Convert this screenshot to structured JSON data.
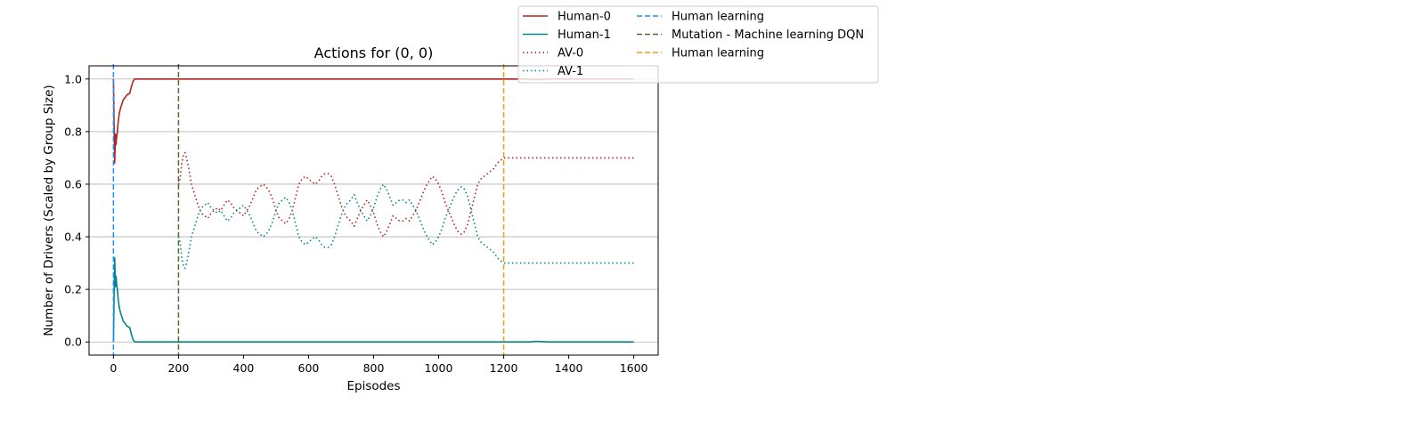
{
  "chart_data": {
    "type": "line",
    "title": "Actions for (0, 0)",
    "xlabel": "Episodes",
    "ylabel": "Number of Drivers (Scaled by Group Size)",
    "xlim": [
      -75,
      1675
    ],
    "ylim": [
      -0.05,
      1.05
    ],
    "xticks": [
      0,
      200,
      400,
      600,
      800,
      1000,
      1200,
      1400,
      1600
    ],
    "yticks": [
      0.0,
      0.2,
      0.4,
      0.6,
      0.8,
      1.0
    ],
    "grid": "horizontal",
    "legend_position": "top-right, outside plot",
    "series": [
      {
        "name": "Human-0",
        "style": "solid",
        "color": "#b22222",
        "x": [
          0,
          2,
          4,
          6,
          8,
          10,
          12,
          14,
          18,
          22,
          26,
          30,
          36,
          42,
          50,
          55,
          60,
          65,
          70,
          80,
          100,
          200,
          400,
          600,
          800,
          1000,
          1200,
          1280,
          1300,
          1340,
          1400,
          1600
        ],
        "y": [
          1.0,
          0.82,
          0.68,
          0.79,
          0.75,
          0.78,
          0.8,
          0.83,
          0.87,
          0.89,
          0.905,
          0.92,
          0.93,
          0.94,
          0.945,
          0.97,
          0.99,
          1.0,
          1.0,
          1.0,
          1.0,
          1.0,
          1.0,
          1.0,
          1.0,
          1.0,
          1.0,
          1.0,
          0.998,
          1.0,
          1.0,
          1.0
        ]
      },
      {
        "name": "Human-1",
        "style": "solid",
        "color": "#00868b",
        "x": [
          0,
          2,
          4,
          6,
          8,
          10,
          12,
          14,
          18,
          22,
          26,
          30,
          36,
          42,
          50,
          55,
          60,
          65,
          70,
          80,
          100,
          200,
          400,
          600,
          800,
          1000,
          1200,
          1280,
          1300,
          1340,
          1400,
          1600
        ],
        "y": [
          0.0,
          0.18,
          0.32,
          0.21,
          0.25,
          0.22,
          0.2,
          0.17,
          0.13,
          0.11,
          0.095,
          0.08,
          0.07,
          0.06,
          0.055,
          0.03,
          0.01,
          0.0,
          0.0,
          0.0,
          0.0,
          0.0,
          0.0,
          0.0,
          0.0,
          0.0,
          0.0,
          0.0,
          0.002,
          0.0,
          0.0,
          0.0
        ]
      },
      {
        "name": "AV-0",
        "style": "dotted",
        "color": "#b22222",
        "x": [
          200,
          205,
          210,
          215,
          220,
          225,
          230,
          240,
          250,
          260,
          270,
          280,
          290,
          300,
          310,
          320,
          330,
          340,
          350,
          360,
          370,
          380,
          390,
          400,
          410,
          420,
          430,
          440,
          450,
          460,
          470,
          480,
          490,
          500,
          510,
          520,
          530,
          540,
          550,
          560,
          570,
          580,
          590,
          600,
          610,
          620,
          630,
          640,
          650,
          660,
          670,
          680,
          690,
          700,
          710,
          720,
          730,
          740,
          750,
          760,
          770,
          780,
          790,
          800,
          810,
          820,
          830,
          840,
          850,
          860,
          870,
          880,
          890,
          900,
          910,
          920,
          930,
          940,
          950,
          960,
          970,
          980,
          990,
          1000,
          1010,
          1020,
          1030,
          1040,
          1050,
          1060,
          1070,
          1080,
          1090,
          1100,
          1110,
          1120,
          1130,
          1140,
          1150,
          1160,
          1170,
          1180,
          1190,
          1200,
          1210,
          1220,
          1230,
          1240,
          1250,
          1260,
          1270,
          1280,
          1300,
          1350,
          1400,
          1450,
          1500,
          1550,
          1600
        ],
        "y": [
          0.6,
          0.62,
          0.68,
          0.71,
          0.72,
          0.7,
          0.67,
          0.6,
          0.56,
          0.52,
          0.49,
          0.48,
          0.47,
          0.49,
          0.5,
          0.51,
          0.5,
          0.52,
          0.54,
          0.53,
          0.51,
          0.5,
          0.49,
          0.48,
          0.5,
          0.52,
          0.55,
          0.58,
          0.59,
          0.6,
          0.59,
          0.57,
          0.54,
          0.5,
          0.47,
          0.46,
          0.45,
          0.47,
          0.5,
          0.55,
          0.6,
          0.62,
          0.63,
          0.62,
          0.61,
          0.6,
          0.61,
          0.63,
          0.64,
          0.64,
          0.63,
          0.6,
          0.56,
          0.52,
          0.49,
          0.47,
          0.46,
          0.44,
          0.47,
          0.5,
          0.52,
          0.54,
          0.52,
          0.49,
          0.45,
          0.42,
          0.4,
          0.42,
          0.45,
          0.48,
          0.47,
          0.46,
          0.46,
          0.47,
          0.46,
          0.48,
          0.5,
          0.53,
          0.56,
          0.59,
          0.61,
          0.63,
          0.62,
          0.6,
          0.57,
          0.53,
          0.5,
          0.47,
          0.44,
          0.42,
          0.41,
          0.42,
          0.45,
          0.5,
          0.55,
          0.6,
          0.62,
          0.63,
          0.64,
          0.65,
          0.66,
          0.68,
          0.69,
          0.7,
          0.7,
          0.7,
          0.7,
          0.7,
          0.7,
          0.7,
          0.7,
          0.7,
          0.7,
          0.7,
          0.7,
          0.7,
          0.7,
          0.7,
          0.7
        ]
      },
      {
        "name": "AV-1",
        "style": "dotted",
        "color": "#00868b",
        "x": [
          200,
          205,
          210,
          215,
          220,
          225,
          230,
          240,
          250,
          260,
          270,
          280,
          290,
          300,
          310,
          320,
          330,
          340,
          350,
          360,
          370,
          380,
          390,
          400,
          410,
          420,
          430,
          440,
          450,
          460,
          470,
          480,
          490,
          500,
          510,
          520,
          530,
          540,
          550,
          560,
          570,
          580,
          590,
          600,
          610,
          620,
          630,
          640,
          650,
          660,
          670,
          680,
          690,
          700,
          710,
          720,
          730,
          740,
          750,
          760,
          770,
          780,
          790,
          800,
          810,
          820,
          830,
          840,
          850,
          860,
          870,
          880,
          890,
          900,
          910,
          920,
          930,
          940,
          950,
          960,
          970,
          980,
          990,
          1000,
          1010,
          1020,
          1030,
          1040,
          1050,
          1060,
          1070,
          1080,
          1090,
          1100,
          1110,
          1120,
          1130,
          1140,
          1150,
          1160,
          1170,
          1180,
          1190,
          1200,
          1210,
          1220,
          1230,
          1240,
          1250,
          1260,
          1270,
          1280,
          1300,
          1350,
          1400,
          1450,
          1500,
          1550,
          1600
        ],
        "y": [
          0.4,
          0.38,
          0.32,
          0.29,
          0.28,
          0.3,
          0.33,
          0.4,
          0.44,
          0.48,
          0.51,
          0.52,
          0.53,
          0.51,
          0.5,
          0.49,
          0.5,
          0.48,
          0.46,
          0.47,
          0.49,
          0.5,
          0.51,
          0.52,
          0.5,
          0.48,
          0.45,
          0.42,
          0.41,
          0.4,
          0.41,
          0.43,
          0.46,
          0.5,
          0.53,
          0.54,
          0.55,
          0.53,
          0.5,
          0.45,
          0.4,
          0.38,
          0.37,
          0.38,
          0.39,
          0.4,
          0.39,
          0.37,
          0.36,
          0.36,
          0.37,
          0.4,
          0.44,
          0.48,
          0.51,
          0.53,
          0.54,
          0.56,
          0.53,
          0.5,
          0.48,
          0.46,
          0.48,
          0.51,
          0.55,
          0.58,
          0.6,
          0.58,
          0.55,
          0.52,
          0.53,
          0.54,
          0.54,
          0.53,
          0.54,
          0.52,
          0.5,
          0.47,
          0.44,
          0.41,
          0.39,
          0.37,
          0.38,
          0.4,
          0.43,
          0.47,
          0.5,
          0.53,
          0.56,
          0.58,
          0.59,
          0.58,
          0.55,
          0.5,
          0.45,
          0.4,
          0.38,
          0.37,
          0.36,
          0.35,
          0.34,
          0.32,
          0.31,
          0.3,
          0.3,
          0.3,
          0.3,
          0.3,
          0.3,
          0.3,
          0.3,
          0.3,
          0.3,
          0.3,
          0.3,
          0.3,
          0.3,
          0.3,
          0.3
        ]
      }
    ],
    "vlines": [
      {
        "name": "Human learning",
        "x": 0,
        "color": "#1e90ff",
        "style": "dashed"
      },
      {
        "name": "Mutation - Machine learning DQN",
        "x": 200,
        "color": "#556b2f",
        "style": "dashed"
      },
      {
        "name": "Human learning",
        "x": 1200,
        "color": "#daa520",
        "style": "dashed"
      }
    ]
  }
}
